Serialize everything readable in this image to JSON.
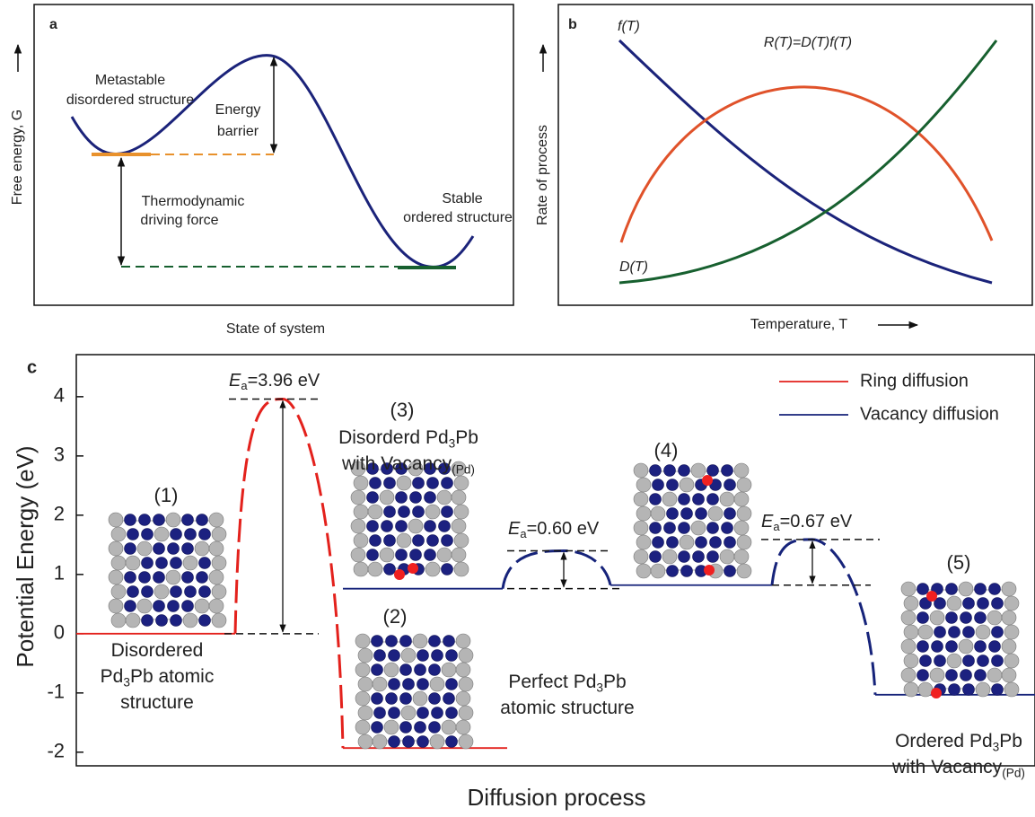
{
  "panel_a": {
    "label": "a",
    "ylabel": "Free energy, G",
    "xlabel": "State of system",
    "annotations": [
      "Metastable",
      "disordered structure",
      "Energy",
      "barrier",
      "Thermodynamic",
      "driving force",
      "Stable",
      "ordered structure"
    ]
  },
  "panel_b": {
    "label": "b",
    "ylabel": "Rate of process",
    "xlabel": "Temperature, T",
    "curves": [
      {
        "name": "f(T)",
        "color": "#1b237a"
      },
      {
        "name": "R(T)=D(T)f(T)",
        "color": "#e0522a"
      },
      {
        "name": "D(T)",
        "color": "#17602f"
      }
    ]
  },
  "chart_data": {
    "type": "energy_diagram",
    "label": "c",
    "ylabel": "Potential Energy (eV)",
    "xlabel": "Diffusion process",
    "ylim": [
      -2.23,
      4.71
    ],
    "yticks": [
      -2,
      -1,
      0,
      1,
      2,
      3,
      4
    ],
    "series": [
      {
        "name": "Ring diffusion",
        "color": "#e3211c"
      },
      {
        "name": "Vacancy diffusion",
        "color": "#16237a"
      }
    ],
    "levels": [
      {
        "energy": 0,
        "series": 0
      },
      {
        "energy": -1.93,
        "series": 0
      },
      {
        "energy": 0.76,
        "series": 1
      },
      {
        "energy": 0.82,
        "series": 1
      },
      {
        "energy": -1.03,
        "series": 1
      }
    ],
    "barriers": [
      {
        "peak": 3.96,
        "series": 0,
        "label": [
          "E",
          "a",
          "=3.96 eV"
        ]
      },
      {
        "peak": 1.4,
        "series": 1,
        "label": [
          "E",
          "a",
          "=0.60 eV"
        ]
      },
      {
        "peak": 1.59,
        "series": 1,
        "label": [
          "E",
          "a",
          "=0.67 eV"
        ]
      }
    ],
    "states": [
      {
        "number": "(1)",
        "series": 0,
        "description": [
          [
            "Disordered"
          ],
          [
            "Pd",
            "3",
            "Pb atomic"
          ],
          [
            "structure"
          ]
        ]
      },
      {
        "number": "(2)",
        "series": 0,
        "description": [
          [
            "Perfect Pd",
            "3",
            "Pb"
          ],
          [
            "atomic structure"
          ]
        ]
      },
      {
        "number": "(3)",
        "series": 1,
        "description": [
          [
            "Disorderd Pd",
            "3",
            "Pb"
          ],
          [
            "with Vacancy",
            "(Pd)"
          ]
        ]
      },
      {
        "number": "(4)",
        "series": 1
      },
      {
        "number": "(5)",
        "series": 1,
        "description": [
          [
            "Ordered Pd",
            "3",
            "Pb"
          ],
          [
            "with Vacancy",
            "(Pd)"
          ]
        ]
      }
    ]
  }
}
